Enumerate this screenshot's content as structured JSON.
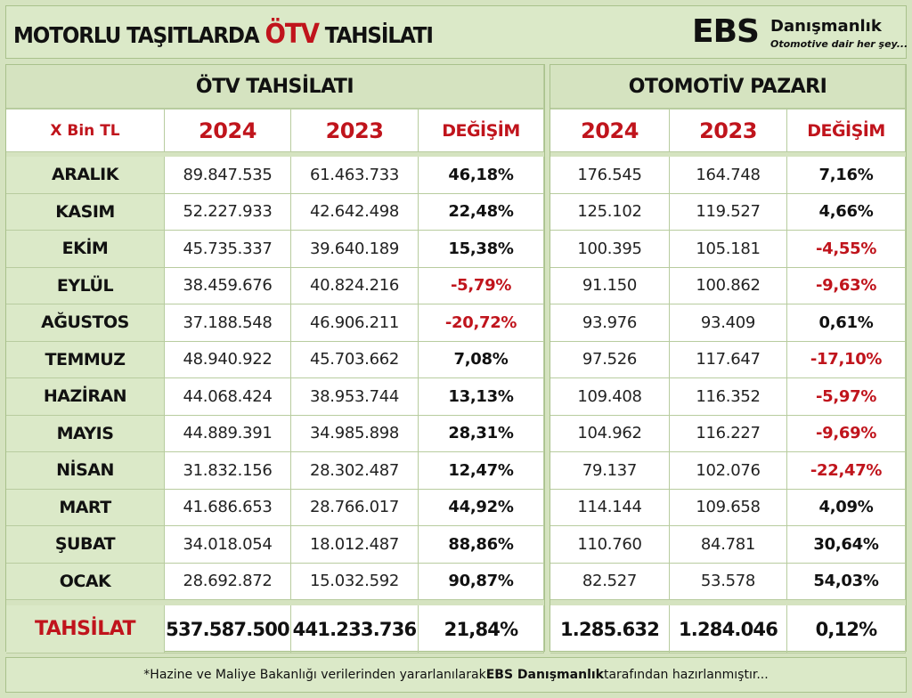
{
  "title": {
    "prefix": "MOTORLU TAŞITLARDA ",
    "accent": "ÖTV",
    "suffix": " TAHSİLATI"
  },
  "logo": {
    "mark": "EBS",
    "name": "Danışmanlık",
    "tagline": "Otomotive dair her şey..."
  },
  "colors": {
    "accent": "#c0141c",
    "panel_fill": "#dbe9c8",
    "border": "#a9c18c"
  },
  "left_section": "ÖTV TAHSİLATI",
  "right_section": "OTOMOTİV PAZARI",
  "headers": {
    "unit": "X Bin TL",
    "y2024": "2024",
    "y2023": "2023",
    "change": "DEĞİŞİM"
  },
  "rows": [
    {
      "month": "ARALIK",
      "otv2024": "89.847.535",
      "otv2023": "61.463.733",
      "otv_change": "46,18%",
      "otv_neg": false,
      "m2024": "176.545",
      "m2023": "164.748",
      "m_change": "7,16%",
      "m_neg": false
    },
    {
      "month": "KASIM",
      "otv2024": "52.227.933",
      "otv2023": "42.642.498",
      "otv_change": "22,48%",
      "otv_neg": false,
      "m2024": "125.102",
      "m2023": "119.527",
      "m_change": "4,66%",
      "m_neg": false
    },
    {
      "month": "EKİM",
      "otv2024": "45.735.337",
      "otv2023": "39.640.189",
      "otv_change": "15,38%",
      "otv_neg": false,
      "m2024": "100.395",
      "m2023": "105.181",
      "m_change": "-4,55%",
      "m_neg": true
    },
    {
      "month": "EYLÜL",
      "otv2024": "38.459.676",
      "otv2023": "40.824.216",
      "otv_change": "-5,79%",
      "otv_neg": true,
      "m2024": "91.150",
      "m2023": "100.862",
      "m_change": "-9,63%",
      "m_neg": true
    },
    {
      "month": "AĞUSTOS",
      "otv2024": "37.188.548",
      "otv2023": "46.906.211",
      "otv_change": "-20,72%",
      "otv_neg": true,
      "m2024": "93.976",
      "m2023": "93.409",
      "m_change": "0,61%",
      "m_neg": false
    },
    {
      "month": "TEMMUZ",
      "otv2024": "48.940.922",
      "otv2023": "45.703.662",
      "otv_change": "7,08%",
      "otv_neg": false,
      "m2024": "97.526",
      "m2023": "117.647",
      "m_change": "-17,10%",
      "m_neg": true
    },
    {
      "month": "HAZİRAN",
      "otv2024": "44.068.424",
      "otv2023": "38.953.744",
      "otv_change": "13,13%",
      "otv_neg": false,
      "m2024": "109.408",
      "m2023": "116.352",
      "m_change": "-5,97%",
      "m_neg": true
    },
    {
      "month": "MAYIS",
      "otv2024": "44.889.391",
      "otv2023": "34.985.898",
      "otv_change": "28,31%",
      "otv_neg": false,
      "m2024": "104.962",
      "m2023": "116.227",
      "m_change": "-9,69%",
      "m_neg": true
    },
    {
      "month": "NİSAN",
      "otv2024": "31.832.156",
      "otv2023": "28.302.487",
      "otv_change": "12,47%",
      "otv_neg": false,
      "m2024": "79.137",
      "m2023": "102.076",
      "m_change": "-22,47%",
      "m_neg": true
    },
    {
      "month": "MART",
      "otv2024": "41.686.653",
      "otv2023": "28.766.017",
      "otv_change": "44,92%",
      "otv_neg": false,
      "m2024": "114.144",
      "m2023": "109.658",
      "m_change": "4,09%",
      "m_neg": false
    },
    {
      "month": "ŞUBAT",
      "otv2024": "34.018.054",
      "otv2023": "18.012.487",
      "otv_change": "88,86%",
      "otv_neg": false,
      "m2024": "110.760",
      "m2023": "84.781",
      "m_change": "30,64%",
      "m_neg": false
    },
    {
      "month": "OCAK",
      "otv2024": "28.692.872",
      "otv2023": "15.032.592",
      "otv_change": "90,87%",
      "otv_neg": false,
      "m2024": "82.527",
      "m2023": "53.578",
      "m_change": "54,03%",
      "m_neg": false
    }
  ],
  "totals": {
    "label": "TAHSİLAT",
    "otv2024": "537.587.500",
    "otv2023": "441.233.736",
    "otv_change": "21,84%",
    "m2024": "1.285.632",
    "m2023": "1.284.046",
    "m_change": "0,12%"
  },
  "footer": {
    "before": "*Hazine ve Maliye Bakanlığı verilerinden yararlanılarak ",
    "brand": "EBS Danışmanlık",
    "after": " tarafından hazırlanmıştır..."
  }
}
